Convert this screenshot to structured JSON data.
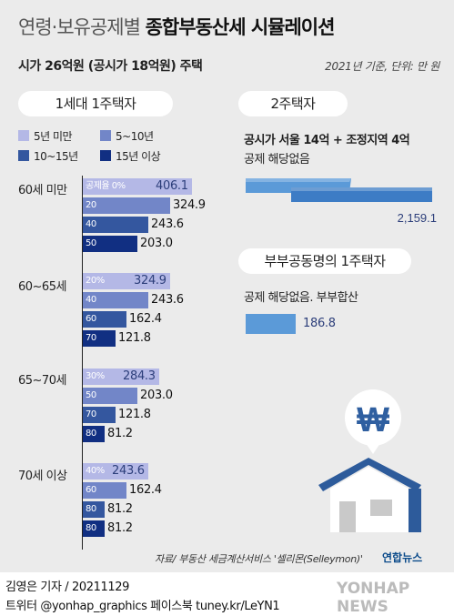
{
  "title_prefix": "연령·보유공제별",
  "title_main": "종합부동산세 시뮬레이션",
  "subtitle": "시가 26억원 (공시가 18억원) 주택",
  "meta": "2021년 기준, 단위: 만 원",
  "section1": {
    "label": "1세대 1주택자"
  },
  "legend": [
    {
      "label": "5년 미만",
      "color": "#b4b8e6"
    },
    {
      "label": "5~10년",
      "color": "#7286c8"
    },
    {
      "label": "10~15년",
      "color": "#34579f"
    },
    {
      "label": "15년 이상",
      "color": "#112f82"
    }
  ],
  "colors": {
    "background": "#ebebeb",
    "light_blue": "#5b9ad8",
    "medium_blue": "#3d7cc5",
    "white": "#ffffff"
  },
  "chart_data": {
    "type": "bar",
    "orientation": "horizontal",
    "xlim": [
      0,
      406.1
    ],
    "groups": [
      {
        "label": "60세 미만",
        "bars": [
          {
            "rate": "공제율 0%",
            "value": 406.1,
            "display": "406.1",
            "holding": "5년 미만"
          },
          {
            "rate": "20",
            "value": 324.9,
            "display": "324.9",
            "holding": "5~10년"
          },
          {
            "rate": "40",
            "value": 243.6,
            "display": "243.6",
            "holding": "10~15년"
          },
          {
            "rate": "50",
            "value": 203.0,
            "display": "203.0",
            "holding": "15년 이상"
          }
        ]
      },
      {
        "label": "60~65세",
        "bars": [
          {
            "rate": "20%",
            "value": 324.9,
            "display": "324.9",
            "holding": "5년 미만"
          },
          {
            "rate": "40",
            "value": 243.6,
            "display": "243.6",
            "holding": "5~10년"
          },
          {
            "rate": "60",
            "value": 162.4,
            "display": "162.4",
            "holding": "10~15년"
          },
          {
            "rate": "70",
            "value": 121.8,
            "display": "121.8",
            "holding": "15년 이상"
          }
        ]
      },
      {
        "label": "65~70세",
        "bars": [
          {
            "rate": "30%",
            "value": 284.3,
            "display": "284.3",
            "holding": "5년 미만"
          },
          {
            "rate": "50",
            "value": 203.0,
            "display": "203.0",
            "holding": "5~10년"
          },
          {
            "rate": "70",
            "value": 121.8,
            "display": "121.8",
            "holding": "10~15년"
          },
          {
            "rate": "80",
            "value": 81.2,
            "display": "81.2",
            "holding": "15년 이상"
          }
        ]
      },
      {
        "label": "70세 이상",
        "bars": [
          {
            "rate": "40%",
            "value": 243.6,
            "display": "243.6",
            "holding": "5년 미만"
          },
          {
            "rate": "60",
            "value": 162.4,
            "display": "162.4",
            "holding": "5~10년"
          },
          {
            "rate": "80",
            "value": 81.2,
            "display": "81.2",
            "holding": "10~15년"
          },
          {
            "rate": "80",
            "value": 81.2,
            "display": "81.2",
            "holding": "15년 이상"
          }
        ]
      }
    ],
    "two_homes": {
      "value": 2159.1,
      "display": "2,159.1"
    },
    "joint_owner": {
      "value": 186.8,
      "display": "186.8"
    }
  },
  "section2": {
    "label": "2주택자",
    "line1": "공시가 서울 14억 + 조정지역 4억",
    "line2": "공제 해당없음"
  },
  "section3": {
    "label": "부부공동명의 1주택자",
    "line1": "공제 해당없음. 부부합산"
  },
  "house_icon": {
    "symbol": "₩"
  },
  "source": "자료/ 부동산 세금계산서비스 '셀리몬(Selleymon)'",
  "brand_inner": "연합뉴스",
  "credit_line1": "김영은 기자 / 20211129",
  "credit_line2": "트위터 @yonhap_graphics  페이스북 tuney.kr/LeYN1",
  "brand_outer": "YONHAP NEWS"
}
